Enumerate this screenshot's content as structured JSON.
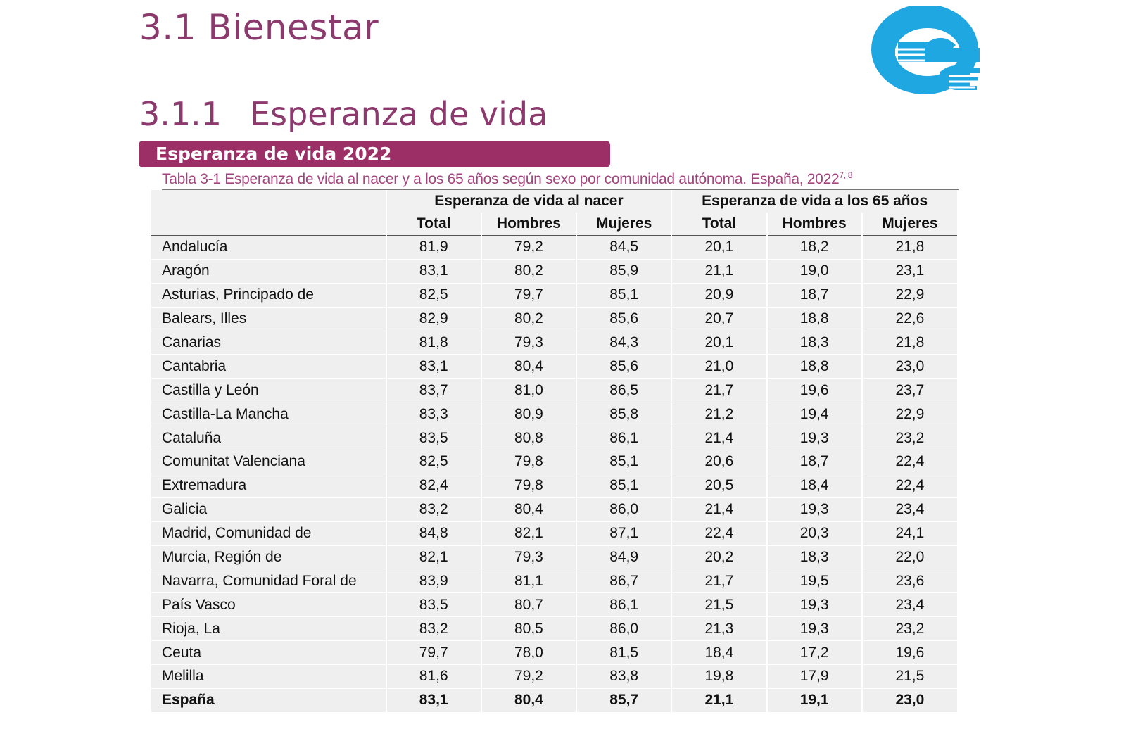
{
  "section_title": "3.1 Bienestar",
  "subsection": {
    "number": "3.1.1",
    "title": "Esperanza de vida"
  },
  "banner": "Esperanza de vida 2022",
  "caption": {
    "text": "Tabla 3-1 Esperanza de vida al nacer y a los 65 años según sexo por comunidad autónoma. España, 2022",
    "footnotes": "7, 8"
  },
  "logo": {
    "icon": "hands-e-logo",
    "color": "#1ea7e1"
  },
  "colors": {
    "title": "#8c3a6e",
    "banner": "#9b2f66",
    "caption": "#a2457e"
  },
  "table": {
    "groups": [
      "Esperanza de vida al nacer",
      "Esperanza de vida a los 65 años"
    ],
    "columns": [
      "Total",
      "Hombres",
      "Mujeres",
      "Total",
      "Hombres",
      "Mujeres"
    ],
    "rows": [
      {
        "name": "Andalucía",
        "values": [
          "81,9",
          "79,2",
          "84,5",
          "20,1",
          "18,2",
          "21,8"
        ]
      },
      {
        "name": "Aragón",
        "values": [
          "83,1",
          "80,2",
          "85,9",
          "21,1",
          "19,0",
          "23,1"
        ]
      },
      {
        "name": "Asturias, Principado de",
        "values": [
          "82,5",
          "79,7",
          "85,1",
          "20,9",
          "18,7",
          "22,9"
        ]
      },
      {
        "name": "Balears, Illes",
        "values": [
          "82,9",
          "80,2",
          "85,6",
          "20,7",
          "18,8",
          "22,6"
        ]
      },
      {
        "name": "Canarias",
        "values": [
          "81,8",
          "79,3",
          "84,3",
          "20,1",
          "18,3",
          "21,8"
        ]
      },
      {
        "name": "Cantabria",
        "values": [
          "83,1",
          "80,4",
          "85,6",
          "21,0",
          "18,8",
          "23,0"
        ]
      },
      {
        "name": "Castilla y León",
        "values": [
          "83,7",
          "81,0",
          "86,5",
          "21,7",
          "19,6",
          "23,7"
        ]
      },
      {
        "name": "Castilla-La Mancha",
        "values": [
          "83,3",
          "80,9",
          "85,8",
          "21,2",
          "19,4",
          "22,9"
        ]
      },
      {
        "name": "Cataluña",
        "values": [
          "83,5",
          "80,8",
          "86,1",
          "21,4",
          "19,3",
          "23,2"
        ]
      },
      {
        "name": "Comunitat Valenciana",
        "values": [
          "82,5",
          "79,8",
          "85,1",
          "20,6",
          "18,7",
          "22,4"
        ]
      },
      {
        "name": "Extremadura",
        "values": [
          "82,4",
          "79,8",
          "85,1",
          "20,5",
          "18,4",
          "22,4"
        ]
      },
      {
        "name": "Galicia",
        "values": [
          "83,2",
          "80,4",
          "86,0",
          "21,4",
          "19,3",
          "23,4"
        ]
      },
      {
        "name": "Madrid, Comunidad de",
        "values": [
          "84,8",
          "82,1",
          "87,1",
          "22,4",
          "20,3",
          "24,1"
        ]
      },
      {
        "name": "Murcia, Región de",
        "values": [
          "82,1",
          "79,3",
          "84,9",
          "20,2",
          "18,3",
          "22,0"
        ]
      },
      {
        "name": "Navarra, Comunidad Foral de",
        "values": [
          "83,9",
          "81,1",
          "86,7",
          "21,7",
          "19,5",
          "23,6"
        ]
      },
      {
        "name": "País Vasco",
        "values": [
          "83,5",
          "80,7",
          "86,1",
          "21,5",
          "19,3",
          "23,4"
        ]
      },
      {
        "name": "Rioja, La",
        "values": [
          "83,2",
          "80,5",
          "86,0",
          "21,3",
          "19,3",
          "23,2"
        ]
      },
      {
        "name": "Ceuta",
        "values": [
          "79,7",
          "78,0",
          "81,5",
          "18,4",
          "17,2",
          "19,6"
        ]
      },
      {
        "name": "Melilla",
        "values": [
          "81,6",
          "79,2",
          "83,8",
          "19,8",
          "17,9",
          "21,5"
        ]
      },
      {
        "name": "España",
        "values": [
          "83,1",
          "80,4",
          "85,7",
          "21,1",
          "19,1",
          "23,0"
        ],
        "bold": true
      }
    ]
  }
}
